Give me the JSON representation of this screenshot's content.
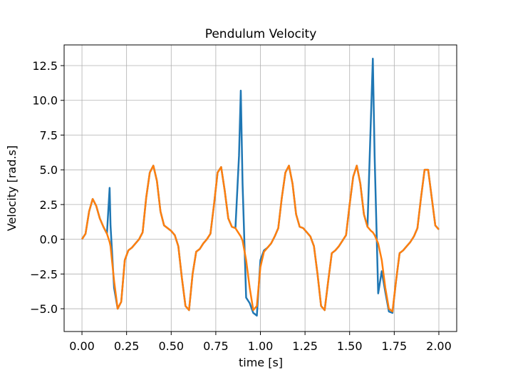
{
  "chart_data": {
    "type": "line",
    "title": "Pendulum Velocity",
    "xlabel": "time [s]",
    "ylabel": "Velocity [rad.s]",
    "x": [
      0,
      0.02,
      0.04,
      0.06,
      0.08,
      0.1,
      0.12,
      0.14,
      0.155,
      0.16,
      0.18,
      0.2,
      0.22,
      0.24,
      0.26,
      0.28,
      0.3,
      0.32,
      0.34,
      0.36,
      0.38,
      0.4,
      0.42,
      0.44,
      0.46,
      0.48,
      0.5,
      0.52,
      0.54,
      0.56,
      0.58,
      0.6,
      0.62,
      0.64,
      0.66,
      0.68,
      0.7,
      0.72,
      0.74,
      0.76,
      0.78,
      0.8,
      0.82,
      0.84,
      0.86,
      0.88,
      0.89,
      0.9,
      0.92,
      0.94,
      0.96,
      0.98,
      1.0,
      1.02,
      1.04,
      1.06,
      1.08,
      1.1,
      1.12,
      1.14,
      1.16,
      1.18,
      1.2,
      1.22,
      1.24,
      1.26,
      1.28,
      1.3,
      1.32,
      1.34,
      1.36,
      1.38,
      1.4,
      1.42,
      1.44,
      1.46,
      1.48,
      1.5,
      1.52,
      1.54,
      1.56,
      1.58,
      1.6,
      1.62,
      1.63,
      1.64,
      1.66,
      1.68,
      1.7,
      1.72,
      1.74,
      1.76,
      1.78,
      1.8,
      1.82,
      1.84,
      1.86,
      1.88,
      1.9,
      1.92,
      1.94,
      1.96,
      1.98,
      2.0
    ],
    "series": [
      {
        "color": "#1f77b4",
        "values": [
          0,
          0.4,
          2.0,
          2.9,
          2.4,
          1.5,
          0.9,
          0.4,
          3.7,
          1.0,
          -3.5,
          -5.0,
          -4.5,
          -1.5,
          -0.8,
          -0.6,
          -0.3,
          0.0,
          0.5,
          3.0,
          4.8,
          5.3,
          4.2,
          2.0,
          1.0,
          0.8,
          0.6,
          0.3,
          -0.5,
          -2.8,
          -4.8,
          -5.1,
          -2.5,
          -0.9,
          -0.7,
          -0.3,
          0.0,
          0.4,
          2.5,
          4.8,
          5.2,
          3.5,
          1.5,
          0.9,
          0.8,
          6.0,
          10.7,
          4.0,
          -4.2,
          -4.6,
          -5.3,
          -5.5,
          -1.5,
          -0.8,
          -0.6,
          -0.3,
          0.2,
          0.8,
          3.0,
          4.8,
          5.3,
          4.0,
          1.8,
          0.9,
          0.8,
          0.5,
          0.2,
          -0.5,
          -2.5,
          -4.8,
          -5.1,
          -3.0,
          -1.0,
          -0.8,
          -0.5,
          -0.1,
          0.3,
          2.5,
          4.5,
          5.3,
          4.0,
          1.8,
          0.9,
          9.0,
          13.0,
          6.0,
          -3.9,
          -2.3,
          -3.8,
          -5.2,
          -5.3,
          -3.0,
          -1.0,
          -0.8,
          -0.5,
          -0.2,
          0.2,
          0.8,
          3.0,
          5.0,
          5.0,
          3.0,
          1.0,
          0.7
        ]
      },
      {
        "color": "#ff7f0e",
        "values": [
          0,
          0.4,
          2.0,
          2.9,
          2.4,
          1.5,
          0.9,
          0.4,
          -0.2,
          -0.5,
          -3.0,
          -5.0,
          -4.5,
          -1.5,
          -0.8,
          -0.6,
          -0.3,
          0.0,
          0.5,
          3.0,
          4.8,
          5.3,
          4.2,
          2.0,
          1.0,
          0.8,
          0.6,
          0.3,
          -0.5,
          -2.8,
          -4.8,
          -5.1,
          -2.5,
          -0.9,
          -0.7,
          -0.3,
          0.0,
          0.4,
          2.5,
          4.8,
          5.2,
          3.5,
          1.5,
          0.9,
          0.8,
          0.4,
          0.2,
          -0.1,
          -1.5,
          -3.5,
          -5.1,
          -4.8,
          -2.0,
          -0.9,
          -0.6,
          -0.3,
          0.2,
          0.8,
          3.0,
          4.8,
          5.3,
          4.0,
          1.8,
          0.9,
          0.8,
          0.5,
          0.2,
          -0.5,
          -2.5,
          -4.8,
          -5.1,
          -3.0,
          -1.0,
          -0.8,
          -0.5,
          -0.1,
          0.3,
          2.5,
          4.5,
          5.3,
          4.0,
          1.8,
          0.9,
          0.6,
          0.5,
          0.3,
          -0.3,
          -1.5,
          -3.5,
          -5.0,
          -5.2,
          -3.0,
          -1.0,
          -0.8,
          -0.5,
          -0.2,
          0.2,
          0.8,
          3.0,
          5.0,
          5.0,
          3.0,
          1.0,
          0.7
        ]
      }
    ],
    "xlim": [
      -0.1,
      2.1
    ],
    "ylim": [
      -6.64,
      13.99
    ],
    "xticks": [
      {
        "value": 0,
        "label": "0.00"
      },
      {
        "value": 0.25,
        "label": "0.25"
      },
      {
        "value": 0.5,
        "label": "0.50"
      },
      {
        "value": 0.75,
        "label": "0.75"
      },
      {
        "value": 1,
        "label": "1.00"
      },
      {
        "value": 1.25,
        "label": "1.25"
      },
      {
        "value": 1.5,
        "label": "1.50"
      },
      {
        "value": 1.75,
        "label": "1.75"
      },
      {
        "value": 2,
        "label": "2.00"
      }
    ],
    "yticks": [
      {
        "value": -5,
        "label": "−5.0"
      },
      {
        "value": -2.5,
        "label": "−2.5"
      },
      {
        "value": 0,
        "label": "0.0"
      },
      2.5,
      {
        "value": 5,
        "label": "5.0"
      },
      7.5,
      {
        "value": 10,
        "label": "10.0"
      },
      12.5
    ],
    "grid": true
  }
}
